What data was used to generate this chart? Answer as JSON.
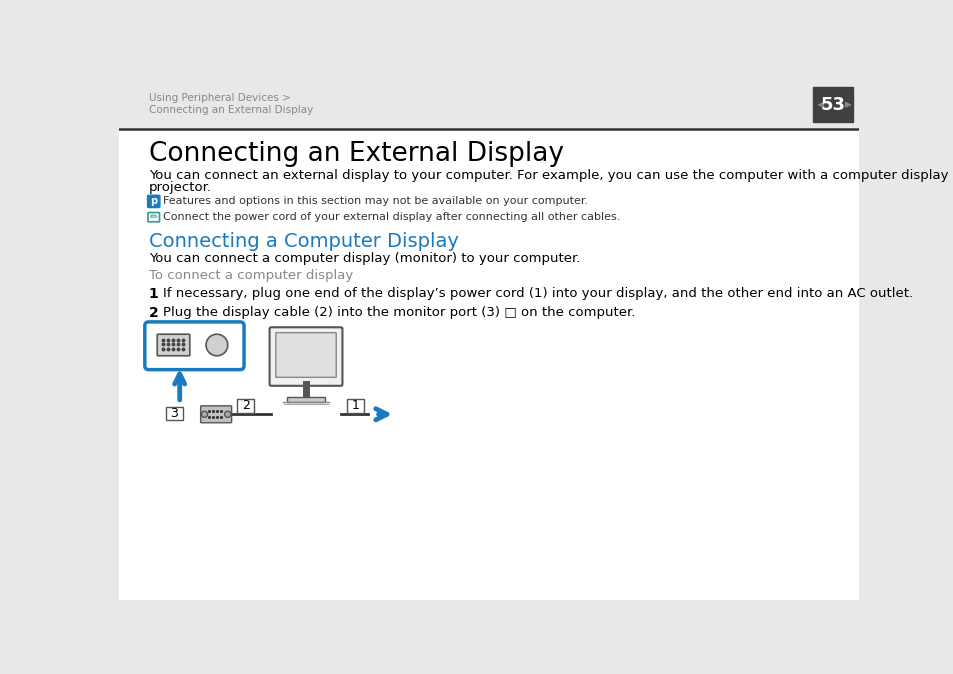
{
  "bg_color": "#e8e8e8",
  "page_bg": "#ffffff",
  "header_text1": "Using Peripheral Devices >",
  "header_text2": "Connecting an External Display",
  "page_num": "53",
  "title": "Connecting an External Display",
  "body1_line1": "You can connect an external display to your computer. For example, you can use the computer with a computer display or a",
  "body1_line2": "projector.",
  "note1": "Features and options in this section may not be available on your computer.",
  "note2": "Connect the power cord of your external display after connecting all other cables.",
  "section_title": "Connecting a Computer Display",
  "section_body": "You can connect a computer display (monitor) to your computer.",
  "subsection": "To connect a computer display",
  "step1": "If necessary, plug one end of the display’s power cord (1) into your display, and the other end into an AC outlet.",
  "step2": "Plug the display cable (2) into the monitor port (3) □ on the computer.",
  "header_color": "#888888",
  "title_color": "#000000",
  "section_color": "#1a7abf",
  "subsection_color": "#888888",
  "body_color": "#000000",
  "note_color": "#333333",
  "blue_color": "#1a7abf",
  "dark_color": "#333333",
  "page_num_bg": "#404040",
  "page_num_color": "#ffffff"
}
